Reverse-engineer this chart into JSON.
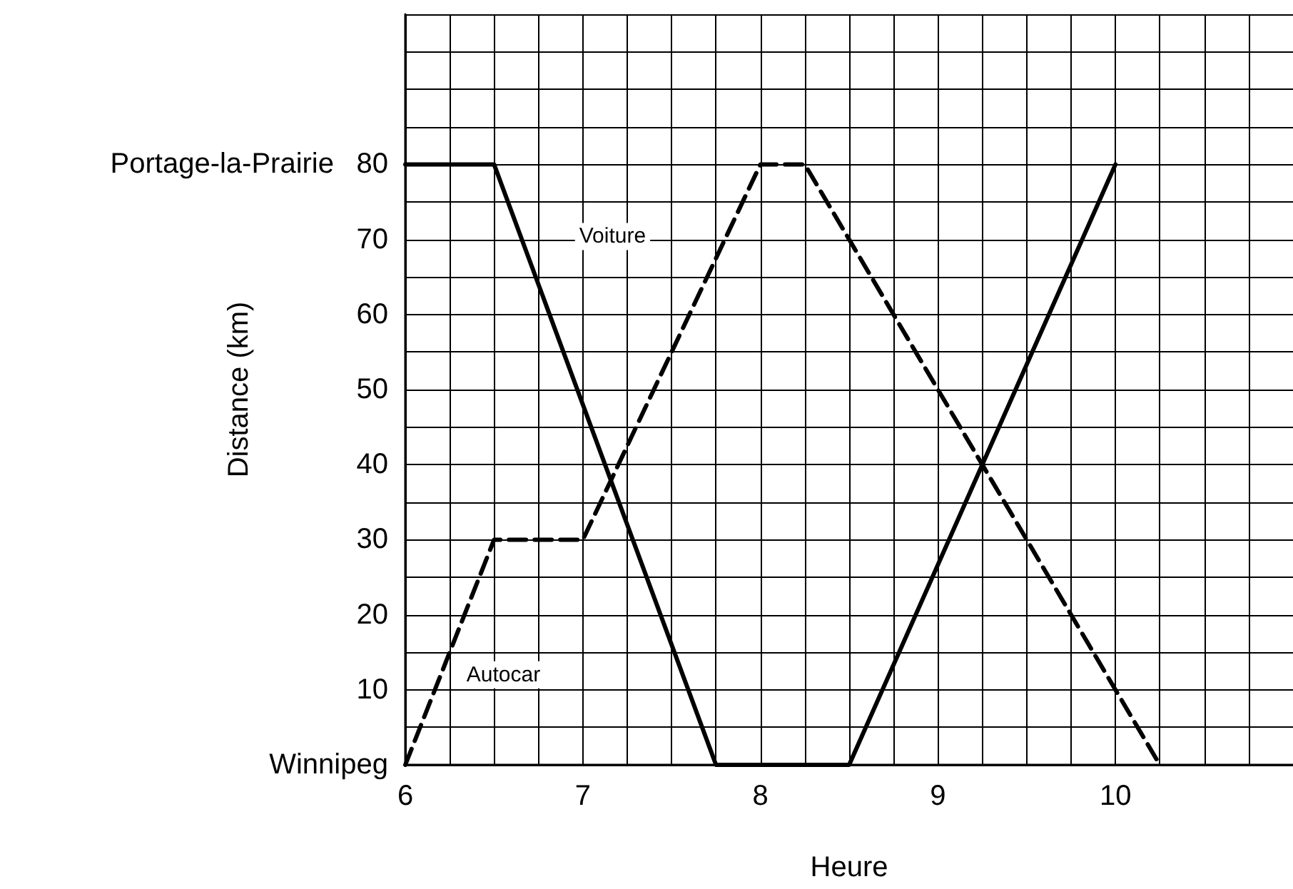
{
  "chart_data": {
    "type": "line",
    "xlabel": "Heure",
    "ylabel": "Distance (km)",
    "series": [
      {
        "name": "Voiture",
        "color": "#000000",
        "line_style": "solid",
        "x": [
          6,
          6.5,
          7.75,
          8.5,
          10
        ],
        "values": [
          80,
          80,
          0,
          0,
          80
        ]
      },
      {
        "name": "Autocar",
        "color": "#000000",
        "line_style": "dashed",
        "x": [
          6,
          6.5,
          7,
          8,
          8.25,
          10.25
        ],
        "values": [
          0,
          30,
          30,
          80,
          80,
          0
        ]
      }
    ],
    "xlim": [
      6,
      11
    ],
    "xticks": [
      6,
      {
        "value": 6.25,
        "label": null
      },
      {
        "value": 6.5,
        "label": null
      },
      {
        "value": 6.75,
        "label": null
      },
      7,
      {
        "value": 7.25,
        "label": null
      },
      {
        "value": 7.5,
        "label": null
      },
      {
        "value": 7.75,
        "label": null
      },
      8,
      {
        "value": 8.25,
        "label": null
      },
      {
        "value": 8.5,
        "label": null
      },
      {
        "value": 8.75,
        "label": null
      },
      9,
      {
        "value": 9.25,
        "label": null
      },
      {
        "value": 9.5,
        "label": null
      },
      {
        "value": 9.75,
        "label": null
      },
      10,
      {
        "value": 10.25,
        "label": null
      },
      {
        "value": 10.5,
        "label": null
      },
      {
        "value": 10.75,
        "label": null
      }
    ],
    "ylim": [
      0,
      100
    ],
    "yticks": [
      {
        "value": 0,
        "label": "Winnipeg"
      },
      {
        "value": 5,
        "label": null
      },
      10,
      {
        "value": 15,
        "label": null
      },
      20,
      {
        "value": 25,
        "label": null
      },
      30,
      {
        "value": 35,
        "label": null
      },
      40,
      {
        "value": 45,
        "label": null
      },
      50,
      {
        "value": 55,
        "label": null
      },
      60,
      {
        "value": 65,
        "label": null
      },
      70,
      {
        "value": 75,
        "label": null
      },
      80,
      {
        "value": 85,
        "label": null
      },
      {
        "value": 90,
        "label": null
      },
      {
        "value": 95,
        "label": null
      },
      {
        "value": 100,
        "label": null
      }
    ],
    "annotations": [
      {
        "text": "Portage-la-Prairie",
        "x": 6,
        "y": 80
      }
    ],
    "grid": true,
    "legend": false,
    "marker": "none"
  }
}
